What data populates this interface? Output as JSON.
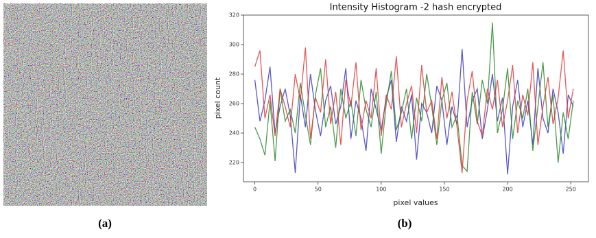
{
  "figure": {
    "panel_a_label": "(a)",
    "panel_b_label": "(b)"
  },
  "chart_data": {
    "type": "line",
    "title": "Intensity Histogram -2 hash encrypted",
    "x_label": "pixel values",
    "y_label": "pixel count",
    "x": [
      0,
      4,
      8,
      12,
      16,
      20,
      24,
      28,
      32,
      36,
      40,
      44,
      48,
      52,
      56,
      60,
      64,
      68,
      72,
      76,
      80,
      84,
      88,
      92,
      96,
      100,
      104,
      108,
      112,
      116,
      120,
      124,
      128,
      132,
      136,
      140,
      144,
      148,
      152,
      156,
      160,
      164,
      168,
      172,
      176,
      180,
      184,
      188,
      192,
      196,
      200,
      204,
      208,
      212,
      216,
      220,
      224,
      228,
      232,
      236,
      240,
      244,
      248,
      252
    ],
    "series": [
      {
        "color": "#3b3bbf",
        "values": [
          276,
          248,
          262,
          285,
          240,
          258,
          270,
          252,
          213,
          266,
          244,
          280,
          255,
          238,
          262,
          272,
          246,
          258,
          284,
          236,
          262,
          250,
          228,
          270,
          256,
          242,
          264,
          276,
          234,
          258,
          248,
          266,
          222,
          260,
          254,
          240,
          272,
          262,
          232,
          258,
          246,
          297,
          244,
          262,
          270,
          236,
          256,
          280,
          248,
          264,
          212,
          258,
          276,
          244,
          262,
          232,
          284,
          250,
          240,
          270,
          254,
          226,
          266,
          258
        ]
      },
      {
        "color": "#2a8a2a",
        "values": [
          244,
          236,
          225,
          262,
          221,
          270,
          248,
          256,
          240,
          274,
          252,
          232,
          266,
          284,
          244,
          258,
          230,
          270,
          250,
          262,
          238,
          276,
          256,
          244,
          268,
          226,
          260,
          282,
          242,
          254,
          270,
          236,
          264,
          248,
          280,
          258,
          232,
          262,
          274,
          244,
          252,
          218,
          214,
          268,
          246,
          276,
          260,
          315,
          240,
          256,
          284,
          236,
          262,
          250,
          270,
          228,
          258,
          288,
          244,
          266,
          220,
          254,
          236,
          262
        ]
      },
      {
        "color": "#e03a3a",
        "values": [
          285,
          296,
          250,
          266,
          238,
          270,
          258,
          244,
          280,
          262,
          298,
          236,
          264,
          254,
          290,
          246,
          268,
          232,
          276,
          258,
          288,
          242,
          262,
          250,
          284,
          238,
          266,
          256,
          292,
          244,
          260,
          272,
          240,
          286,
          254,
          262,
          236,
          278,
          250,
          268,
          244,
          213,
          262,
          282,
          248,
          238,
          270,
          256,
          276,
          244,
          262,
          286,
          240,
          266,
          252,
          288,
          232,
          258,
          278,
          246,
          264,
          296,
          250,
          270
        ]
      }
    ],
    "xlim": [
      -9,
      264
    ],
    "ylim": [
      207,
      320
    ],
    "xticks": [
      0,
      50,
      100,
      150,
      200,
      250
    ],
    "yticks": [
      220,
      240,
      260,
      280,
      300,
      320
    ]
  }
}
